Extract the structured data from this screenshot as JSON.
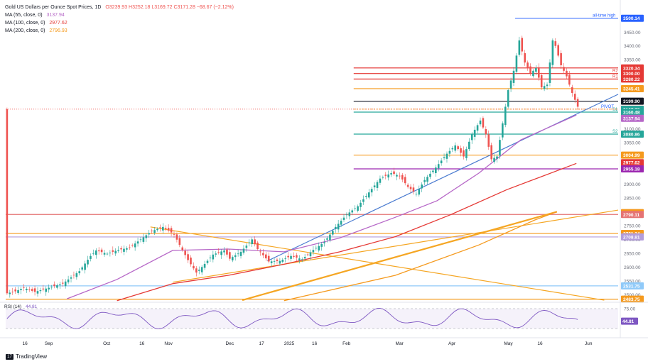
{
  "header": {
    "symbol": "Gold US Dollars per Ounce Spot Prices, 1D",
    "ohlc": "O3239.93 H3252.18 L3169.72 C3171.28 −68.67 (−2.12%)",
    "change_color": "#ef5350",
    "ma_lines": [
      {
        "label": "MA (55, close, 0)",
        "value": "3137.94",
        "color": "#b667c7"
      },
      {
        "label": "MA (100, close, 0)",
        "value": "2977.62",
        "color": "#e53935"
      },
      {
        "label": "MA (200, close, 0)",
        "value": "2796.93",
        "color": "#f59a1e"
      }
    ]
  },
  "branding": {
    "label": "TradingView",
    "icon": "tradingview-logo-icon"
  },
  "chart_data": {
    "type": "candlestick",
    "title": "Gold US Dollars per Ounce Spot Prices, 1D",
    "ylim": [
      2475,
      3520
    ],
    "y_ticks": [
      2500,
      2550,
      2600,
      2650,
      2700,
      2750,
      2800,
      2850,
      2900,
      2950,
      3000,
      3050,
      3100,
      3150,
      3200,
      3250,
      3300,
      3350,
      3400,
      3450,
      3500
    ],
    "x_tick_labels": [
      "16",
      "Sep",
      "Oct",
      "16",
      "Nov",
      "Dec",
      "17",
      "2025",
      "16",
      "Feb",
      "Mar",
      "Apr",
      "May",
      "16",
      "Jun"
    ],
    "price_path": [
      [
        0,
        2505
      ],
      [
        3,
        2512
      ],
      [
        6,
        2525
      ],
      [
        10,
        2510
      ],
      [
        14,
        2522
      ],
      [
        20,
        2540
      ],
      [
        26,
        2585
      ],
      [
        30,
        2640
      ],
      [
        32,
        2660
      ],
      [
        36,
        2648
      ],
      [
        40,
        2662
      ],
      [
        44,
        2670
      ],
      [
        48,
        2700
      ],
      [
        52,
        2730
      ],
      [
        56,
        2745
      ],
      [
        58,
        2732
      ],
      [
        60,
        2718
      ],
      [
        62,
        2680
      ],
      [
        65,
        2625
      ],
      [
        68,
        2580
      ],
      [
        70,
        2600
      ],
      [
        74,
        2645
      ],
      [
        78,
        2660
      ],
      [
        80,
        2630
      ],
      [
        84,
        2655
      ],
      [
        88,
        2700
      ],
      [
        90,
        2665
      ],
      [
        94,
        2620
      ],
      [
        98,
        2622
      ],
      [
        102,
        2640
      ],
      [
        106,
        2628
      ],
      [
        110,
        2662
      ],
      [
        114,
        2690
      ],
      [
        118,
        2745
      ],
      [
        122,
        2790
      ],
      [
        126,
        2820
      ],
      [
        130,
        2870
      ],
      [
        134,
        2920
      ],
      [
        138,
        2940
      ],
      [
        141,
        2930
      ],
      [
        144,
        2890
      ],
      [
        147,
        2865
      ],
      [
        150,
        2915
      ],
      [
        154,
        2960
      ],
      [
        158,
        3010
      ],
      [
        161,
        3040
      ],
      [
        164,
        3000
      ],
      [
        167,
        3080
      ],
      [
        170,
        3130
      ],
      [
        172,
        3080
      ],
      [
        174,
        2990
      ],
      [
        176,
        3000
      ],
      [
        178,
        3120
      ],
      [
        180,
        3240
      ],
      [
        182,
        3310
      ],
      [
        184,
        3420
      ],
      [
        186,
        3340
      ],
      [
        188,
        3300
      ],
      [
        190,
        3320
      ],
      [
        192,
        3250
      ],
      [
        194,
        3260
      ],
      [
        196,
        3420
      ],
      [
        197,
        3400
      ],
      [
        199,
        3330
      ],
      [
        201,
        3290
      ],
      [
        203,
        3230
      ],
      [
        205,
        3180
      ]
    ],
    "series": [
      {
        "name": "MA (55, close, 0)",
        "value": 3137.94,
        "color": "#b667c7",
        "points": [
          [
            22,
            2485
          ],
          [
            40,
            2555
          ],
          [
            60,
            2660
          ],
          [
            80,
            2665
          ],
          [
            100,
            2655
          ],
          [
            120,
            2705
          ],
          [
            140,
            2780
          ],
          [
            155,
            2840
          ],
          [
            170,
            2940
          ],
          [
            185,
            3060
          ],
          [
            205,
            3150
          ]
        ]
      },
      {
        "name": "MA (100, close, 0)",
        "value": 2977.62,
        "color": "#e53935",
        "points": [
          [
            40,
            2478
          ],
          [
            60,
            2540
          ],
          [
            80,
            2570
          ],
          [
            100,
            2610
          ],
          [
            120,
            2655
          ],
          [
            140,
            2710
          ],
          [
            160,
            2790
          ],
          [
            180,
            2880
          ],
          [
            205,
            2975
          ]
        ]
      },
      {
        "name": "MA (200, close, 0)",
        "value": 2796.93,
        "color": "#f59a1e",
        "points": [
          [
            100,
            2478
          ],
          [
            140,
            2570
          ],
          [
            170,
            2680
          ],
          [
            190,
            2770
          ],
          [
            198,
            2800
          ]
        ]
      }
    ],
    "horizontal_levels": [
      {
        "label": "all-time high",
        "value": 3500.14,
        "color": "#2962ff",
        "kind": "ath"
      },
      {
        "label": "",
        "value": 3320.34,
        "color": "#e53935",
        "kind": "resistance"
      },
      {
        "label": "R2",
        "value": 3300.0,
        "color": "#e53935",
        "kind": "pivot"
      },
      {
        "label": "R1",
        "value": 3280.22,
        "color": "#e53935",
        "kind": "pivot"
      },
      {
        "label": "",
        "value": 3245.41,
        "color": "#f59a1e",
        "kind": "support"
      },
      {
        "label": "",
        "value": 3199.9,
        "color": "#131722",
        "kind": "key"
      },
      {
        "label": "PIVOT",
        "value": 3171.28,
        "color": "#f59a1e",
        "kind": "pivot"
      },
      {
        "label": "S1",
        "value": 3160.48,
        "color": "#26a69a",
        "kind": "pivot"
      },
      {
        "label": "S2",
        "value": 3080.86,
        "color": "#26a69a",
        "kind": "pivot"
      },
      {
        "label": "",
        "value": 3004.99,
        "color": "#f59a1e",
        "kind": "support"
      },
      {
        "label": "",
        "value": 2955.18,
        "color": "#9c27b0",
        "kind": "support"
      },
      {
        "label": "",
        "value": 2790.11,
        "color": "#e57373",
        "kind": "support"
      },
      {
        "label": "",
        "value": 2721.34,
        "color": "#f59a1e",
        "kind": "support"
      },
      {
        "label": "",
        "value": 2708.81,
        "color": "#b39ddb",
        "kind": "support"
      },
      {
        "label": "",
        "value": 2531.75,
        "color": "#90caf9",
        "kind": "support"
      },
      {
        "label": "",
        "value": 2483.75,
        "color": "#f59a1e",
        "kind": "support"
      }
    ],
    "price_labels": [
      {
        "value": "3500.14",
        "price": 3500.14,
        "bg": "#2962ff"
      },
      {
        "value": "3320.34",
        "price": 3320.34,
        "bg": "#e53935"
      },
      {
        "value": "3300.00",
        "price": 3300.0,
        "bg": "#e53935"
      },
      {
        "value": "3280.22",
        "price": 3280.22,
        "bg": "#e53935"
      },
      {
        "value": "3245.41",
        "price": 3245.41,
        "bg": "#f59a1e"
      },
      {
        "value": "3199.90",
        "price": 3199.9,
        "bg": "#131722"
      },
      {
        "value": "3171.28",
        "price": 3171.28,
        "bg": "#ef5350"
      },
      {
        "value": "3167.78",
        "price": 3160.48,
        "bg": "#26a69a"
      },
      {
        "value": "3160.48",
        "price": 3160.48,
        "bg": "#26a69a"
      },
      {
        "value": "3137.94",
        "price": 3137.94,
        "bg": "#b667c7"
      },
      {
        "value": "3080.86",
        "price": 3080.86,
        "bg": "#26a69a"
      },
      {
        "value": "3004.99",
        "price": 3004.99,
        "bg": "#f59a1e"
      },
      {
        "value": "2977.62",
        "price": 2977.62,
        "bg": "#e53935"
      },
      {
        "value": "2955.18",
        "price": 2955.18,
        "bg": "#9c27b0"
      },
      {
        "value": "2796.93",
        "price": 2796.93,
        "bg": "#f59a1e"
      },
      {
        "value": "2790.11",
        "price": 2790.11,
        "bg": "#e57373"
      },
      {
        "value": "2721.34",
        "price": 2721.34,
        "bg": "#f59a1e"
      },
      {
        "value": "2708.81",
        "price": 2708.81,
        "bg": "#b39ddb"
      },
      {
        "value": "2531.75",
        "price": 2531.75,
        "bg": "#90caf9"
      },
      {
        "value": "2483.75",
        "price": 2483.75,
        "bg": "#f59a1e"
      }
    ],
    "trendlines": [
      {
        "name": "blue-uptrend",
        "color": "#4a7bd0",
        "from": [
          94,
          2622
        ],
        "to": [
          220,
          3225
        ]
      },
      {
        "name": "orange-upper",
        "color": "#f5a623",
        "from": [
          52,
          2745
        ],
        "to": [
          215,
          2480
        ]
      },
      {
        "name": "orange-lower",
        "color": "#f5a623",
        "from": [
          60,
          2545
        ],
        "to": [
          220,
          2806
        ]
      },
      {
        "name": "orange-thick",
        "color": "#f5a623",
        "from": [
          85,
          2480
        ],
        "to": [
          198,
          2800
        ]
      }
    ],
    "rsi": {
      "label": "RSI (14)",
      "value": 44.81,
      "ylim": [
        20,
        80
      ],
      "upper": 70,
      "lower": 30,
      "tick_label": "75.00",
      "color": "#7e57c2"
    }
  }
}
